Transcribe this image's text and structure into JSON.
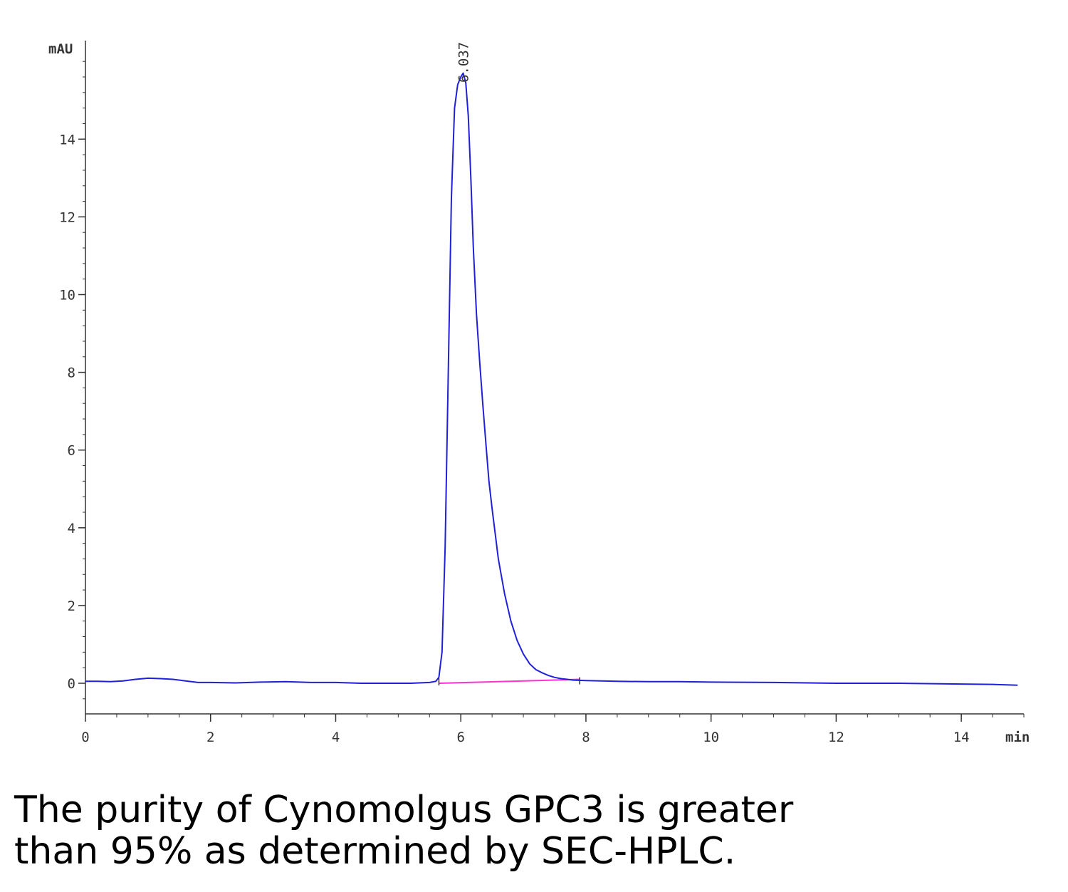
{
  "chart_data": {
    "type": "line",
    "title": "",
    "xlabel": "",
    "ylabel": "",
    "x_unit": "min",
    "y_unit": "mAU",
    "xlim": [
      0,
      15
    ],
    "ylim": [
      -0.8,
      16
    ],
    "x_ticks": [
      0,
      2,
      4,
      6,
      8,
      10,
      12,
      14
    ],
    "y_ticks": [
      0,
      2,
      4,
      6,
      8,
      10,
      12,
      14
    ],
    "grid": false,
    "colors": {
      "trace": "#2020d8",
      "baseline": "#ff33cc",
      "axis": "#333333"
    },
    "peak_annotation": {
      "label": "6.037",
      "x": 6.037
    },
    "baseline_segment": {
      "x": [
        5.65,
        7.9
      ],
      "y": [
        0.0,
        0.1
      ]
    },
    "series": [
      {
        "x": [
          0,
          0.2,
          0.4,
          0.6,
          0.8,
          1.0,
          1.2,
          1.4,
          1.6,
          1.8,
          2.0,
          2.4,
          2.8,
          3.2,
          3.6,
          4.0,
          4.4,
          4.8,
          5.2,
          5.5,
          5.6,
          5.65,
          5.7,
          5.75,
          5.8,
          5.85,
          5.9,
          5.95,
          6.0,
          6.037,
          6.08,
          6.12,
          6.16,
          6.2,
          6.25,
          6.3,
          6.35,
          6.4,
          6.45,
          6.5,
          6.6,
          6.7,
          6.8,
          6.9,
          7.0,
          7.1,
          7.2,
          7.3,
          7.4,
          7.5,
          7.6,
          7.7,
          7.8,
          8.0,
          8.5,
          9.0,
          9.5,
          10.0,
          11.0,
          12.0,
          13.0,
          14.0,
          14.5,
          14.9
        ],
        "y": [
          0.05,
          0.05,
          0.04,
          0.06,
          0.1,
          0.13,
          0.12,
          0.1,
          0.06,
          0.02,
          0.02,
          0.01,
          0.03,
          0.04,
          0.02,
          0.02,
          0.0,
          0.0,
          0.0,
          0.02,
          0.05,
          0.15,
          0.8,
          3.5,
          8.0,
          12.5,
          14.8,
          15.4,
          15.6,
          15.7,
          15.45,
          14.6,
          13.0,
          11.2,
          9.5,
          8.3,
          7.2,
          6.2,
          5.2,
          4.5,
          3.2,
          2.3,
          1.6,
          1.1,
          0.75,
          0.5,
          0.35,
          0.27,
          0.2,
          0.15,
          0.12,
          0.1,
          0.08,
          0.07,
          0.05,
          0.04,
          0.04,
          0.03,
          0.02,
          0.0,
          0.0,
          -0.02,
          -0.03,
          -0.05
        ]
      }
    ]
  },
  "caption": {
    "line1": "The purity of Cynomolgus GPC3 is greater",
    "line2": "than 95% as determined by SEC-HPLC."
  }
}
